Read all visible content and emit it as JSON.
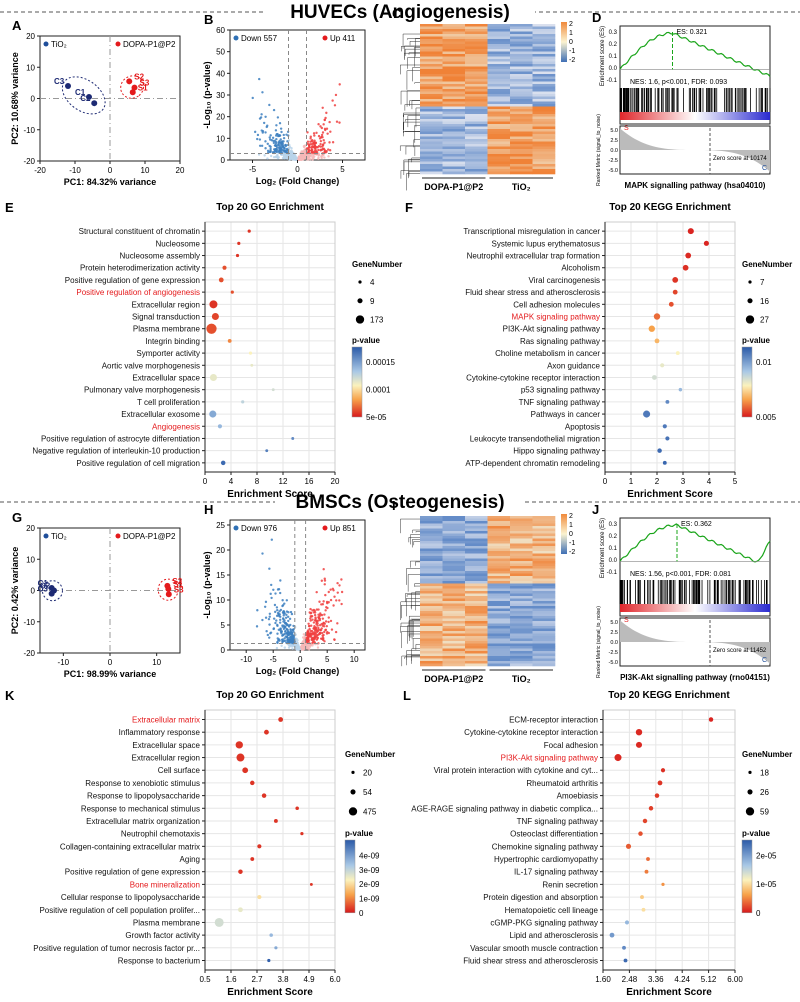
{
  "sections": {
    "top": "HUVECs (Angiogenesis)",
    "bottom": "BMSCs (Osteogenesis)"
  },
  "colors": {
    "red": "#e41a1c",
    "blue": "#1f4e9a",
    "navy": "#1d2a73",
    "grid": "#e6e6e6",
    "green": "#1aa51a"
  },
  "panels": {
    "A": {
      "letter": "A",
      "type": "scatter",
      "legend_a": "TiO₂",
      "legend_b": "DOPA-P1@P2",
      "xlabel": "PC1: 84.32% variance",
      "ylabel": "PC2: 10.68% variance",
      "xlim": [
        -20,
        20
      ],
      "ylim": [
        -20,
        20
      ],
      "xticks": [
        -20,
        -10,
        0,
        10,
        20
      ],
      "yticks": [
        -20,
        -10,
        0,
        10,
        20
      ],
      "points": [
        {
          "label": "C1",
          "x": -6,
          "y": 0.5,
          "group": "a"
        },
        {
          "label": "C2",
          "x": -4.5,
          "y": -1.5,
          "group": "a"
        },
        {
          "label": "C3",
          "x": -12,
          "y": 4,
          "group": "a"
        },
        {
          "label": "S1",
          "x": 6.5,
          "y": 2,
          "group": "b"
        },
        {
          "label": "S2",
          "x": 5.5,
          "y": 5.5,
          "group": "b"
        },
        {
          "label": "S3",
          "x": 7,
          "y": 3.5,
          "group": "b"
        }
      ]
    },
    "B": {
      "letter": "B",
      "type": "volcano",
      "down": "Down 557",
      "up": "Up 411",
      "xlabel": "Log₂ (Fold Change)",
      "ylabel": "-Log₁₀ (p-value)",
      "xticks": [
        -5,
        0,
        5
      ],
      "yticks": [
        0,
        10,
        20,
        30,
        40,
        50,
        60
      ],
      "xlim": [
        -7.5,
        7.5
      ],
      "ylim": [
        0,
        60
      ]
    },
    "C": {
      "letter": "C",
      "type": "heatmap",
      "groups": [
        "DOPA-P1@P2",
        "TiO₂"
      ],
      "scale": [
        "2",
        "1",
        "0",
        "-1",
        "-2"
      ]
    },
    "D": {
      "letter": "D",
      "type": "gsea",
      "es_text": "ES: 0.321",
      "stats": "NES: 1.6, p<0.001, FDR: 0.093",
      "zero_text": "Zero score at 10174",
      "ylabel_top": "Enrichment score (ES)",
      "ylabel_bottom": "Ranked Metric (signal_to_noise)",
      "title": "MAPK signalling pathway (hsa04010)",
      "yticks": [
        "0.3",
        "0.2",
        "0.1",
        "0.0",
        "-0.1"
      ],
      "rank_ticks": [
        "5.0",
        "2.5",
        "0.0",
        "-2.5",
        "-5.0"
      ],
      "s_label": "S",
      "c_label": "C"
    },
    "E": {
      "letter": "E",
      "title": "Top 20 GO Enrichment",
      "xlabel": "Enrichment Score",
      "xlim": [
        0,
        20
      ],
      "xticks": [
        0,
        4,
        8,
        12,
        16,
        20
      ],
      "size_title": "GeneNumber",
      "size_legend": [
        "4",
        "9",
        "173"
      ],
      "color_title": "p-value",
      "color_legend": [
        "0.00015",
        "0.0001",
        "5e-05"
      ],
      "terms": [
        {
          "term": "Structural constituent of chromatin",
          "x": 6.8,
          "size": 1,
          "c": 0.95
        },
        {
          "term": "Nucleosome",
          "x": 5.2,
          "size": 1,
          "c": 0.95
        },
        {
          "term": "Nucleosome assembly",
          "x": 5.0,
          "size": 1,
          "c": 0.95
        },
        {
          "term": "Protein heterodimerization activity",
          "x": 3.0,
          "size": 1.3,
          "c": 0.9
        },
        {
          "term": "Positive regulation of gene expression",
          "x": 2.5,
          "size": 1.5,
          "c": 0.9
        },
        {
          "term": "Positive regulation of angiogenesis",
          "x": 4.2,
          "size": 1,
          "c": 0.9,
          "highlight": true
        },
        {
          "term": "Extracellular region",
          "x": 1.3,
          "size": 2.5,
          "c": 0.95
        },
        {
          "term": "Signal transduction",
          "x": 1.6,
          "size": 2.2,
          "c": 0.92
        },
        {
          "term": "Plasma membrane",
          "x": 1.0,
          "size": 3.2,
          "c": 0.9
        },
        {
          "term": "Integrin binding",
          "x": 3.8,
          "size": 1.2,
          "c": 0.8
        },
        {
          "term": "Symporter activity",
          "x": 7.0,
          "size": 1,
          "c": 0.55
        },
        {
          "term": "Aortic valve morphogenesis",
          "x": 7.2,
          "size": 0.9,
          "c": 0.5
        },
        {
          "term": "Extracellular space",
          "x": 1.3,
          "size": 2.2,
          "c": 0.5
        },
        {
          "term": "Pulmonary valve morphogenesis",
          "x": 10.5,
          "size": 0.9,
          "c": 0.45
        },
        {
          "term": "T cell proliferation",
          "x": 5.8,
          "size": 1,
          "c": 0.4
        },
        {
          "term": "Extracellular exosome",
          "x": 1.2,
          "size": 2.2,
          "c": 0.25
        },
        {
          "term": "Angiogenesis",
          "x": 2.3,
          "size": 1.3,
          "c": 0.3,
          "highlight": true
        },
        {
          "term": "Positive regulation of astrocyte differentiation",
          "x": 13.5,
          "size": 0.9,
          "c": 0.15
        },
        {
          "term": "Negative regulation of interleukin-10 production",
          "x": 9.5,
          "size": 0.9,
          "c": 0.12
        },
        {
          "term": "Positive regulation of cell migration",
          "x": 2.8,
          "size": 1.4,
          "c": 0.05
        }
      ]
    },
    "F": {
      "letter": "F",
      "title": "Top 20 KEGG Enrichment",
      "xlabel": "Enrichment Score",
      "xlim": [
        0,
        5
      ],
      "xticks": [
        0,
        1,
        2,
        3,
        4,
        5
      ],
      "size_title": "GeneNumber",
      "size_legend": [
        "7",
        "16",
        "27"
      ],
      "color_title": "p-value",
      "color_legend": [
        "0.01",
        "0.005"
      ],
      "terms": [
        {
          "term": "Transcriptional misregulation in cancer",
          "x": 3.3,
          "size": 1.9,
          "c": 0.98
        },
        {
          "term": "Systemic lupus erythematosus",
          "x": 3.9,
          "size": 1.6,
          "c": 0.98
        },
        {
          "term": "Neutrophil extracellular trap formation",
          "x": 3.2,
          "size": 1.8,
          "c": 0.97
        },
        {
          "term": "Alcoholism",
          "x": 3.1,
          "size": 1.8,
          "c": 0.96
        },
        {
          "term": "Viral carcinogenesis",
          "x": 2.7,
          "size": 1.8,
          "c": 0.95
        },
        {
          "term": "Fluid shear stress and atherosclerosis",
          "x": 2.7,
          "size": 1.5,
          "c": 0.92
        },
        {
          "term": "Cell adhesion molecules",
          "x": 2.55,
          "size": 1.5,
          "c": 0.9
        },
        {
          "term": "MAPK signaling pathway",
          "x": 2.0,
          "size": 2.0,
          "c": 0.85,
          "highlight": true
        },
        {
          "term": "PI3K-Akt signaling pathway",
          "x": 1.8,
          "size": 2.0,
          "c": 0.75
        },
        {
          "term": "Ras signaling pathway",
          "x": 2.0,
          "size": 1.5,
          "c": 0.7
        },
        {
          "term": "Choline metabolism in cancer",
          "x": 2.8,
          "size": 1.2,
          "c": 0.55
        },
        {
          "term": "Axon guidance",
          "x": 2.2,
          "size": 1.3,
          "c": 0.5
        },
        {
          "term": "Cytokine-cytokine receptor interaction",
          "x": 1.9,
          "size": 1.5,
          "c": 0.45
        },
        {
          "term": "p53 signaling pathway",
          "x": 2.9,
          "size": 1.1,
          "c": 0.3
        },
        {
          "term": "TNF signaling pathway",
          "x": 2.4,
          "size": 1.2,
          "c": 0.15
        },
        {
          "term": "Pathways in cancer",
          "x": 1.6,
          "size": 2.2,
          "c": 0.1
        },
        {
          "term": "Apoptosis",
          "x": 2.3,
          "size": 1.3,
          "c": 0.1
        },
        {
          "term": "Leukocyte transendothelial migration",
          "x": 2.4,
          "size": 1.3,
          "c": 0.08
        },
        {
          "term": "Hippo signaling pathway",
          "x": 2.1,
          "size": 1.4,
          "c": 0.05
        },
        {
          "term": "ATP-dependent chromatin remodeling",
          "x": 2.3,
          "size": 1.2,
          "c": 0.04
        }
      ]
    },
    "G": {
      "letter": "G",
      "type": "scatter",
      "legend_a": "TiO₂",
      "legend_b": "DOPA-P1@P2",
      "xlabel": "PC1: 98.99% variance",
      "ylabel": "PC2: 0.42% variance",
      "xlim": [
        -15,
        15
      ],
      "ylim": [
        -20,
        20
      ],
      "xticks": [
        -10,
        0,
        10
      ],
      "yticks": [
        -20,
        -10,
        0,
        10,
        20
      ],
      "points": [
        {
          "label": "C1",
          "x": -12.5,
          "y": 0.8,
          "group": "a"
        },
        {
          "label": "C2",
          "x": -12.0,
          "y": 0,
          "group": "a"
        },
        {
          "label": "C3",
          "x": -12.5,
          "y": -1.0,
          "group": "a"
        },
        {
          "label": "S1",
          "x": 12.5,
          "y": 0.5,
          "group": "b"
        },
        {
          "label": "S2",
          "x": 12.3,
          "y": 1.5,
          "group": "b"
        },
        {
          "label": "S3",
          "x": 12.6,
          "y": -1.2,
          "group": "b"
        }
      ]
    },
    "H": {
      "letter": "H",
      "type": "volcano",
      "down": "Down 976",
      "up": "Up 851",
      "xlabel": "Log₂ (Fold Change)",
      "ylabel": "-Log₁₀ (p-value)",
      "xticks": [
        -10,
        -5,
        0,
        5,
        10
      ],
      "yticks": [
        0,
        5,
        10,
        15,
        20,
        25
      ],
      "xlim": [
        -13,
        12
      ],
      "ylim": [
        0,
        26
      ]
    },
    "I": {
      "letter": "I",
      "type": "heatmap",
      "groups": [
        "DOPA-P1@P2",
        "TiO₂"
      ],
      "scale": [
        "2",
        "1",
        "0",
        "-1",
        "-2"
      ]
    },
    "J": {
      "letter": "J",
      "type": "gsea",
      "es_text": "ES: 0.362",
      "stats": "NES: 1.56, p<0.001, FDR: 0.081",
      "zero_text": "Zero score at 11452",
      "ylabel_top": "Enrichment score (ES)",
      "ylabel_bottom": "Ranked Metric (signal_to_noise)",
      "title": "PI3K-Akt signalling pathway (rno04151)",
      "yticks": [
        "0.3",
        "0.2",
        "0.1",
        "0.0",
        "-0.1"
      ],
      "rank_ticks": [
        "5.0",
        "2.5",
        "0.0",
        "-2.5",
        "-5.0"
      ],
      "s_label": "S",
      "c_label": "C"
    },
    "K": {
      "letter": "K",
      "title": "Top 20 GO Enrichment",
      "xlabel": "Enrichment Score",
      "xlim": [
        0.5,
        6.0
      ],
      "xticks": [
        0.5,
        1.6,
        2.7,
        3.8,
        4.9,
        6.0
      ],
      "xticklabels": [
        "0.5",
        "1.6",
        "2.7",
        "3.8",
        "4.9",
        "6.0"
      ],
      "size_title": "GeneNumber",
      "size_legend": [
        "20",
        "54",
        "475"
      ],
      "color_title": "p-value",
      "color_legend": [
        "4e-09",
        "3e-09",
        "2e-09",
        "1e-09",
        "0"
      ],
      "terms": [
        {
          "term": "Extracellular matrix",
          "x": 3.7,
          "size": 1.5,
          "c": 0.95,
          "highlight": true
        },
        {
          "term": "Inflammatory response",
          "x": 3.1,
          "size": 1.5,
          "c": 0.95
        },
        {
          "term": "Extracellular space",
          "x": 1.95,
          "size": 2.3,
          "c": 0.95
        },
        {
          "term": "Extracellular region",
          "x": 2.0,
          "size": 2.5,
          "c": 0.95
        },
        {
          "term": "Cell surface",
          "x": 2.2,
          "size": 1.8,
          "c": 0.95
        },
        {
          "term": "Response to xenobiotic stimulus",
          "x": 2.5,
          "size": 1.4,
          "c": 0.95
        },
        {
          "term": "Response to lipopolysaccharide",
          "x": 3.0,
          "size": 1.4,
          "c": 0.95
        },
        {
          "term": "Response to mechanical stimulus",
          "x": 4.4,
          "size": 1.1,
          "c": 0.95
        },
        {
          "term": "Extracellular matrix organization",
          "x": 3.5,
          "size": 1.2,
          "c": 0.95
        },
        {
          "term": "Neutrophil chemotaxis",
          "x": 4.6,
          "size": 1.0,
          "c": 0.95
        },
        {
          "term": "Collagen-containing extracellular matrix",
          "x": 2.8,
          "size": 1.3,
          "c": 0.95
        },
        {
          "term": "Aging",
          "x": 2.5,
          "size": 1.2,
          "c": 0.95
        },
        {
          "term": "Positive regulation of gene expression",
          "x": 2.0,
          "size": 1.4,
          "c": 0.95
        },
        {
          "term": "Bone mineralization",
          "x": 5.0,
          "size": 0.9,
          "c": 0.95,
          "highlight": true
        },
        {
          "term": "Cellular response to lipopolysaccharide",
          "x": 2.8,
          "size": 1.3,
          "c": 0.6
        },
        {
          "term": "Positive regulation of cell population prolifer...",
          "x": 2.0,
          "size": 1.5,
          "c": 0.5
        },
        {
          "term": "Plasma membrane",
          "x": 1.1,
          "size": 2.8,
          "c": 0.45
        },
        {
          "term": "Growth factor activity",
          "x": 3.3,
          "size": 1.1,
          "c": 0.3
        },
        {
          "term": "Positive regulation of tumor necrosis factor pr...",
          "x": 3.5,
          "size": 1.0,
          "c": 0.25
        },
        {
          "term": "Response to bacterium",
          "x": 3.2,
          "size": 1.0,
          "c": 0.02
        }
      ]
    },
    "L": {
      "letter": "L",
      "title": "Top 20 KEGG Enrichment",
      "xlabel": "Enrichment Score",
      "xlim": [
        1.6,
        6.0
      ],
      "xticks": [
        1.6,
        2.48,
        3.36,
        4.24,
        5.12,
        6.0
      ],
      "xticklabels": [
        "1.60",
        "2.48",
        "3.36",
        "4.24",
        "5.12",
        "6.00"
      ],
      "size_title": "GeneNumber",
      "size_legend": [
        "18",
        "26",
        "59"
      ],
      "color_title": "p-value",
      "color_legend": [
        "2e-05",
        "1e-05",
        "0"
      ],
      "terms": [
        {
          "term": "ECM-receptor interaction",
          "x": 5.2,
          "size": 1.4,
          "c": 0.98
        },
        {
          "term": "Cytokine-cytokine receptor interaction",
          "x": 2.8,
          "size": 2.0,
          "c": 0.97
        },
        {
          "term": "Focal adhesion",
          "x": 2.8,
          "size": 1.9,
          "c": 0.97
        },
        {
          "term": "PI3K-Akt signaling pathway",
          "x": 2.1,
          "size": 2.2,
          "c": 0.97,
          "highlight": true
        },
        {
          "term": "Viral protein interaction with cytokine and cyt...",
          "x": 3.6,
          "size": 1.3,
          "c": 0.96
        },
        {
          "term": "Rheumatoid arthritis",
          "x": 3.5,
          "size": 1.5,
          "c": 0.95
        },
        {
          "term": "Amoebiasis",
          "x": 3.4,
          "size": 1.4,
          "c": 0.94
        },
        {
          "term": "AGE-RAGE signaling pathway in diabetic complica...",
          "x": 3.2,
          "size": 1.4,
          "c": 0.93
        },
        {
          "term": "TNF signaling pathway",
          "x": 3.0,
          "size": 1.4,
          "c": 0.92
        },
        {
          "term": "Osteoclast differentiation",
          "x": 2.85,
          "size": 1.4,
          "c": 0.9
        },
        {
          "term": "Chemokine signaling pathway",
          "x": 2.45,
          "size": 1.6,
          "c": 0.88
        },
        {
          "term": "Hypertrophic cardiomyopathy",
          "x": 3.1,
          "size": 1.2,
          "c": 0.85
        },
        {
          "term": "IL-17 signaling pathway",
          "x": 3.05,
          "size": 1.2,
          "c": 0.82
        },
        {
          "term": "Renin secretion",
          "x": 3.6,
          "size": 1.0,
          "c": 0.78
        },
        {
          "term": "Protein digestion and absorption",
          "x": 2.9,
          "size": 1.2,
          "c": 0.65
        },
        {
          "term": "Hematopoietic cell lineage",
          "x": 2.95,
          "size": 1.2,
          "c": 0.6
        },
        {
          "term": "cGMP-PKG signaling pathway",
          "x": 2.4,
          "size": 1.3,
          "c": 0.3
        },
        {
          "term": "Lipid and atherosclerosis",
          "x": 1.9,
          "size": 1.5,
          "c": 0.2
        },
        {
          "term": "Vascular smooth muscle contraction",
          "x": 2.3,
          "size": 1.2,
          "c": 0.15
        },
        {
          "term": "Fluid shear stress and atherosclerosis",
          "x": 2.35,
          "size": 1.2,
          "c": 0.05
        }
      ]
    }
  },
  "chart_data": [
    {
      "type": "scatter",
      "panel": "A",
      "title": "PCA HUVECs",
      "xlabel": "PC1: 84.32% variance",
      "ylabel": "PC2: 10.68% variance"
    },
    {
      "type": "scatter",
      "panel": "B",
      "title": "Volcano HUVECs",
      "series": [
        {
          "name": "Down",
          "count": 557
        },
        {
          "name": "Up",
          "count": 411
        }
      ]
    },
    {
      "type": "heatmap",
      "panel": "C",
      "groups": [
        "DOPA-P1@P2",
        "TiO2"
      ]
    },
    {
      "type": "line",
      "panel": "D",
      "title": "MAPK signalling pathway (hsa04010)",
      "es": 0.321,
      "nes": 1.6,
      "fdr": 0.093
    },
    {
      "type": "scatter",
      "panel": "E",
      "title": "Top 20 GO Enrichment"
    },
    {
      "type": "scatter",
      "panel": "F",
      "title": "Top 20 KEGG Enrichment"
    },
    {
      "type": "scatter",
      "panel": "G",
      "title": "PCA BMSCs",
      "xlabel": "PC1: 98.99% variance",
      "ylabel": "PC2: 0.42% variance"
    },
    {
      "type": "scatter",
      "panel": "H",
      "title": "Volcano BMSCs",
      "series": [
        {
          "name": "Down",
          "count": 976
        },
        {
          "name": "Up",
          "count": 851
        }
      ]
    },
    {
      "type": "heatmap",
      "panel": "I",
      "groups": [
        "DOPA-P1@P2",
        "TiO2"
      ]
    },
    {
      "type": "line",
      "panel": "J",
      "title": "PI3K-Akt signalling pathway (rno04151)",
      "es": 0.362,
      "nes": 1.56,
      "fdr": 0.081
    },
    {
      "type": "scatter",
      "panel": "K",
      "title": "Top 20 GO Enrichment"
    },
    {
      "type": "scatter",
      "panel": "L",
      "title": "Top 20 KEGG Enrichment"
    }
  ]
}
